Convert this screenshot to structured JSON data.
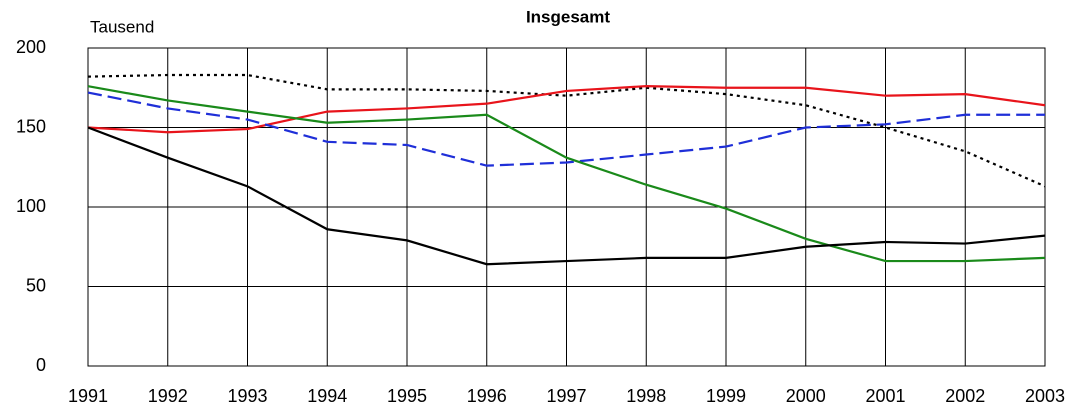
{
  "chart_data": {
    "type": "line",
    "title": "Insgesamt",
    "y_label": "Tausend",
    "x": [
      1991,
      1992,
      1993,
      1994,
      1995,
      1996,
      1997,
      1998,
      1999,
      2000,
      2001,
      2002,
      2003
    ],
    "xlim": [
      1991,
      2003
    ],
    "xticks": [
      1991,
      1992,
      1993,
      1994,
      1995,
      1996,
      1997,
      1998,
      1999,
      2000,
      2001,
      2002,
      2003
    ],
    "ylim": [
      0,
      200
    ],
    "yticks": [
      0,
      50,
      100,
      150,
      200
    ],
    "grid": true,
    "series": [
      {
        "color": "#000000",
        "dash": "dotted",
        "values": [
          182,
          183,
          183,
          174,
          174,
          173,
          170,
          175,
          171,
          164,
          150,
          135,
          113
        ]
      },
      {
        "color": "#e8141b",
        "dash": "solid",
        "values": [
          150,
          147,
          149,
          160,
          162,
          165,
          173,
          176,
          175,
          175,
          170,
          171,
          164
        ]
      },
      {
        "color": "#1f2fd8",
        "dash": "dashed",
        "values": [
          172,
          162,
          155,
          141,
          139,
          126,
          128,
          133,
          138,
          150,
          152,
          158,
          158
        ]
      },
      {
        "color": "#1a8a1a",
        "dash": "solid",
        "values": [
          176,
          167,
          160,
          153,
          155,
          158,
          131,
          114,
          99,
          80,
          66,
          66,
          68
        ]
      },
      {
        "color": "#000000",
        "dash": "solid",
        "values": [
          150,
          131,
          113,
          86,
          79,
          64,
          66,
          68,
          68,
          75,
          78,
          77,
          82
        ]
      }
    ]
  }
}
